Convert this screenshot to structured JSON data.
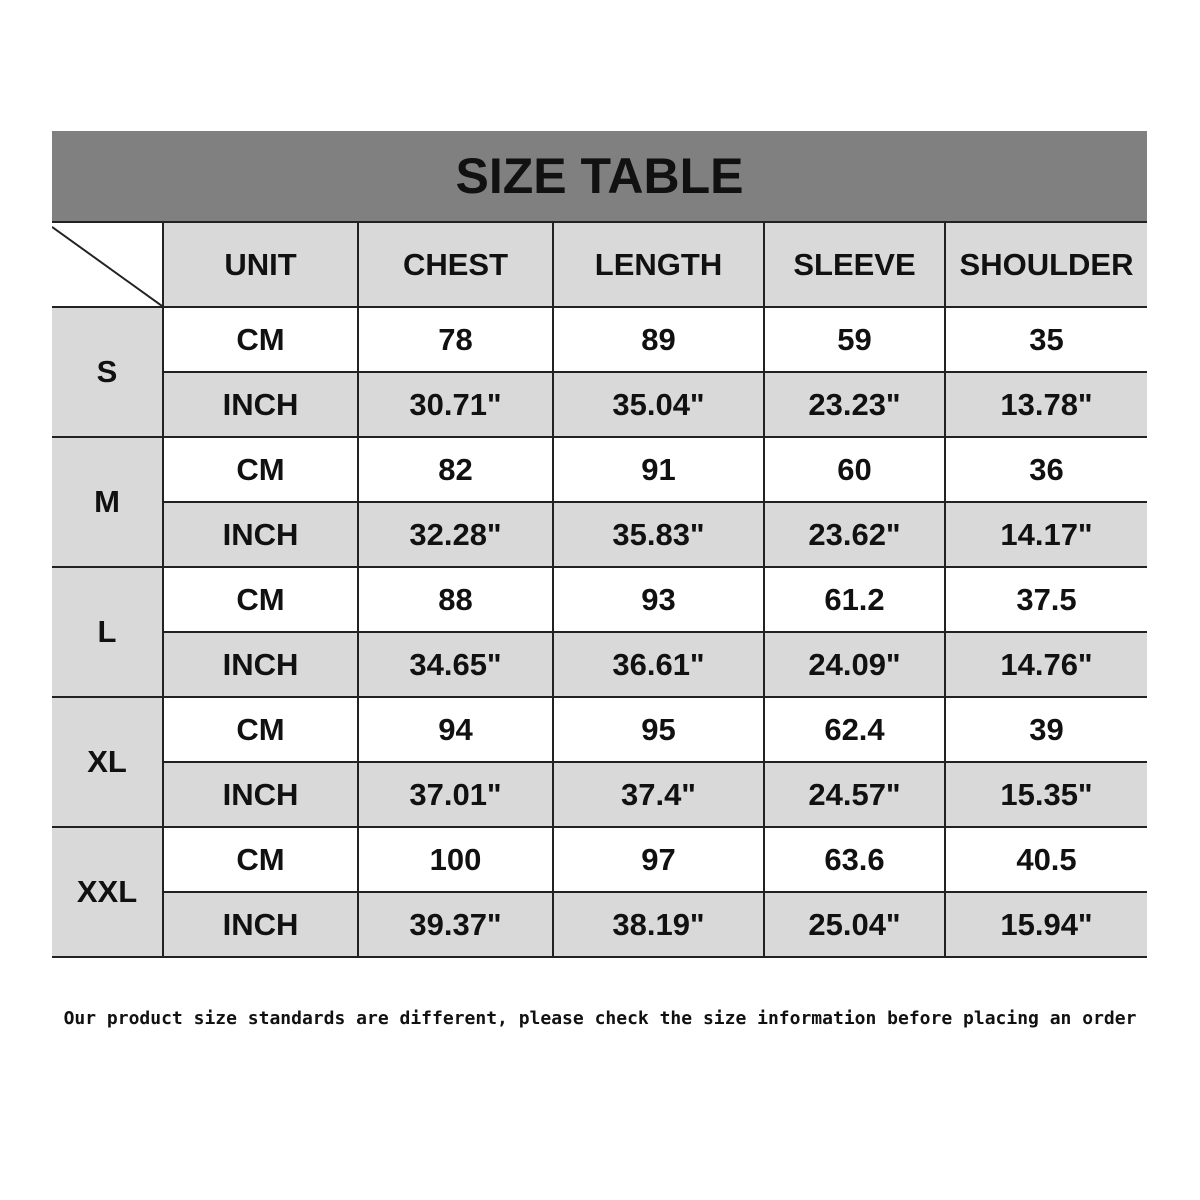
{
  "title": "SIZE TABLE",
  "columns": [
    "UNIT",
    "CHEST",
    "LENGTH",
    "SLEEVE",
    "SHOULDER"
  ],
  "rows": [
    {
      "size": "S",
      "cm": [
        "CM",
        "78",
        "89",
        "59",
        "35"
      ],
      "inch": [
        "INCH",
        "30.71\"",
        "35.04\"",
        "23.23\"",
        "13.78\""
      ]
    },
    {
      "size": "M",
      "cm": [
        "CM",
        "82",
        "91",
        "60",
        "36"
      ],
      "inch": [
        "INCH",
        "32.28\"",
        "35.83\"",
        "23.62\"",
        "14.17\""
      ]
    },
    {
      "size": "L",
      "cm": [
        "CM",
        "88",
        "93",
        "61.2",
        "37.5"
      ],
      "inch": [
        "INCH",
        "34.65\"",
        "36.61\"",
        "24.09\"",
        "14.76\""
      ]
    },
    {
      "size": "XL",
      "cm": [
        "CM",
        "94",
        "95",
        "62.4",
        "39"
      ],
      "inch": [
        "INCH",
        "37.01\"",
        "37.4\"",
        "24.57\"",
        "15.35\""
      ]
    },
    {
      "size": "XXL",
      "cm": [
        "CM",
        "100",
        "97",
        "63.6",
        "40.5"
      ],
      "inch": [
        "INCH",
        "39.37\"",
        "38.19\"",
        "25.04\"",
        "15.94\""
      ]
    }
  ],
  "note": "Our product size standards are different, please check the size information before placing an order",
  "colors": {
    "title_band": "#808080",
    "shaded_cell": "#d9d9d9",
    "grid_line": "#222222"
  }
}
